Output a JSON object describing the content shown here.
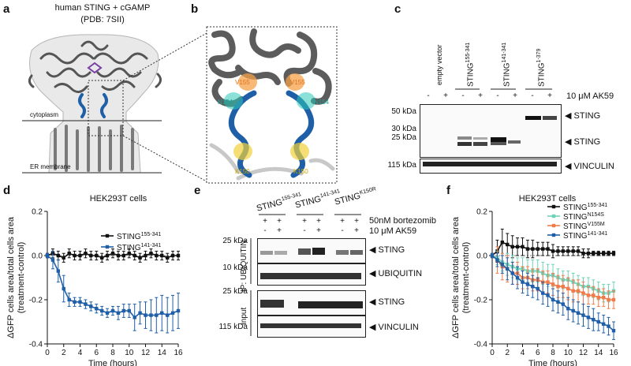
{
  "panels": {
    "a": "a",
    "b": "b",
    "c": "c",
    "d": "d",
    "e": "e",
    "f": "f"
  },
  "panel_a": {
    "title": "human STING + cGAMP",
    "subtitle": "(PDB: 7SII)",
    "cytoplasm": "cytoplasm",
    "er_membrane": "ER membrane"
  },
  "panel_b": {
    "labels": [
      "V155",
      "V155",
      "N154",
      "N154",
      "K150",
      "K150"
    ]
  },
  "panel_c": {
    "col_groups": [
      "empty vector",
      "STING",
      "STING",
      "STING"
    ],
    "col_group_sups": [
      "",
      "155-341",
      "141-341",
      "1-379"
    ],
    "treatment_signs": [
      "-",
      "+",
      "-",
      "+",
      "-",
      "+",
      "-",
      "+"
    ],
    "treatment_label": "10 μM AK59",
    "mw": [
      "50 kDa",
      "30 kDa",
      "25 kDa",
      "115 kDa"
    ],
    "bands": [
      "◀ STING",
      "◀ STING",
      "◀ VINCULIN"
    ]
  },
  "panel_d": {
    "title": "HEK293T cells"
  },
  "panel_e": {
    "groups": [
      "STING",
      "STING",
      "STING"
    ],
    "group_sups": [
      "155-341",
      "141-341",
      "K150R"
    ],
    "row1_signs": [
      "+",
      "+",
      "+",
      "+",
      "+",
      "+"
    ],
    "row2_signs": [
      "-",
      "+",
      "-",
      "+",
      "-",
      "+"
    ],
    "row1_label": "50nM bortezomib",
    "row2_label": "10 μM AK59",
    "ip_label": "IP: UBIQUITIN",
    "input_label": "Input",
    "mw": [
      "25 kDa",
      "10 kDa",
      "25 kDa",
      "115 kDa"
    ],
    "bands": [
      "◀ STING",
      "◀ UBIQUITIN",
      "◀ STING",
      "◀ VINCULIN"
    ]
  },
  "panel_f": {
    "title": "HEK293T cells"
  },
  "chart_data": [
    {
      "type": "line",
      "panel": "d",
      "title": "HEK293T cells",
      "xlabel": "Time (hours)",
      "ylabel": "ΔGFP cells area/total cells area (treatment-control)",
      "ylabel_lines": [
        "ΔGFP cells area/total cells area",
        "(treatment-control)"
      ],
      "xlim": [
        0,
        16
      ],
      "ylim": [
        -0.4,
        0.2
      ],
      "xticks": [
        0,
        2,
        4,
        6,
        8,
        10,
        12,
        14,
        16
      ],
      "yticks": [
        0.2,
        0.0,
        -0.2,
        -0.4
      ],
      "ytick_labels": [
        "0.2",
        "0.0",
        "-0.2",
        "-0.4"
      ],
      "series": [
        {
          "name": "STING155-341",
          "base": "STING",
          "sup": "155-341",
          "color": "#111111",
          "x": [
            0,
            0.67,
            1.33,
            2,
            2.67,
            3.33,
            4,
            4.67,
            5.33,
            6,
            6.67,
            7.33,
            8,
            8.67,
            9.33,
            10,
            10.67,
            11.33,
            12,
            12.67,
            13.33,
            14,
            14.67,
            15.33,
            16
          ],
          "y": [
            0,
            0.01,
            0,
            -0.01,
            0.01,
            0,
            0,
            0.01,
            0,
            0,
            -0.01,
            0,
            0.01,
            0,
            0,
            0.01,
            0,
            -0.01,
            0,
            0.01,
            0,
            0,
            -0.01,
            0,
            0
          ],
          "err": [
            0.01,
            0.02,
            0.02,
            0.02,
            0.02,
            0.02,
            0.02,
            0.02,
            0.02,
            0.02,
            0.02,
            0.02,
            0.02,
            0.02,
            0.02,
            0.02,
            0.02,
            0.02,
            0.02,
            0.02,
            0.02,
            0.02,
            0.02,
            0.02,
            0.02
          ]
        },
        {
          "name": "STING141-341",
          "base": "STING",
          "sup": "141-341",
          "color": "#1f5fa8",
          "x": [
            0,
            0.67,
            1.33,
            2,
            2.67,
            3.33,
            4,
            4.67,
            5.33,
            6,
            6.67,
            7.33,
            8,
            8.67,
            9.33,
            10,
            10.67,
            11.33,
            12,
            12.67,
            13.33,
            14,
            14.67,
            15.33,
            16
          ],
          "y": [
            0,
            -0.02,
            -0.07,
            -0.15,
            -0.2,
            -0.21,
            -0.21,
            -0.22,
            -0.23,
            -0.24,
            -0.25,
            -0.26,
            -0.25,
            -0.26,
            -0.25,
            -0.25,
            -0.28,
            -0.26,
            -0.27,
            -0.27,
            -0.27,
            -0.26,
            -0.27,
            -0.26,
            -0.25
          ],
          "err": [
            0.01,
            0.04,
            0.05,
            0.06,
            0.03,
            0.02,
            0.02,
            0.02,
            0.02,
            0.02,
            0.02,
            0.02,
            0.02,
            0.03,
            0.03,
            0.03,
            0.06,
            0.05,
            0.06,
            0.07,
            0.08,
            0.08,
            0.08,
            0.08,
            0.08
          ]
        }
      ]
    },
    {
      "type": "line",
      "panel": "f",
      "title": "HEK293T cells",
      "xlabel": "Time (hours)",
      "ylabel": "ΔGFP cells area/total cells area (treatment-control)",
      "ylabel_lines": [
        "ΔGFP cells area/total cells area",
        "(treatment-control)"
      ],
      "xlim": [
        0,
        16
      ],
      "ylim": [
        -0.4,
        0.2
      ],
      "xticks": [
        0,
        2,
        4,
        6,
        8,
        10,
        12,
        14,
        16
      ],
      "yticks": [
        0.2,
        0.0,
        -0.2,
        -0.4
      ],
      "ytick_labels": [
        "0.2",
        "0.0",
        "-0.2",
        "-0.4"
      ],
      "series": [
        {
          "name": "STING155-341",
          "base": "STING",
          "sup": "155-341",
          "color": "#111111",
          "x": [
            0,
            0.67,
            1.33,
            2,
            2.67,
            3.33,
            4,
            4.67,
            5.33,
            6,
            6.67,
            7.33,
            8,
            8.67,
            9.33,
            10,
            10.67,
            11.33,
            12,
            12.67,
            13.33,
            14,
            14.67,
            15.33,
            16
          ],
          "y": [
            0,
            0.02,
            0.06,
            0.05,
            0.04,
            0.04,
            0.04,
            0.03,
            0.03,
            0.03,
            0.03,
            0.03,
            0.02,
            0.02,
            0.02,
            0.02,
            0.02,
            0.02,
            0.01,
            0.01,
            0.01,
            0.01,
            0.01,
            0.01,
            0.01
          ],
          "err": [
            0.01,
            0.05,
            0.06,
            0.05,
            0.05,
            0.04,
            0.04,
            0.04,
            0.04,
            0.03,
            0.03,
            0.03,
            0.03,
            0.02,
            0.02,
            0.02,
            0.02,
            0.02,
            0.02,
            0.02,
            0.01,
            0.01,
            0.01,
            0.01,
            0.01
          ]
        },
        {
          "name": "STINGN154S",
          "base": "STING",
          "sup": "N154S",
          "color": "#6fd3b8",
          "x": [
            0,
            0.67,
            1.33,
            2,
            2.67,
            3.33,
            4,
            4.67,
            5.33,
            6,
            6.67,
            7.33,
            8,
            8.67,
            9.33,
            10,
            10.67,
            11.33,
            12,
            12.67,
            13.33,
            14,
            14.67,
            15.33,
            16
          ],
          "y": [
            0,
            -0.01,
            -0.03,
            -0.04,
            -0.05,
            -0.06,
            -0.06,
            -0.07,
            -0.07,
            -0.07,
            -0.08,
            -0.09,
            -0.09,
            -0.1,
            -0.11,
            -0.11,
            -0.12,
            -0.13,
            -0.14,
            -0.14,
            -0.15,
            -0.16,
            -0.17,
            -0.17,
            -0.16
          ],
          "err": [
            0.01,
            0.03,
            0.04,
            0.05,
            0.05,
            0.05,
            0.05,
            0.05,
            0.05,
            0.05,
            0.05,
            0.05,
            0.05,
            0.04,
            0.04,
            0.04,
            0.04,
            0.04,
            0.04,
            0.04,
            0.04,
            0.04,
            0.04,
            0.04,
            0.04
          ]
        },
        {
          "name": "STINGV155M",
          "base": "STING",
          "sup": "V155M",
          "color": "#f07b4a",
          "x": [
            0,
            0.67,
            1.33,
            2,
            2.67,
            3.33,
            4,
            4.67,
            5.33,
            6,
            6.67,
            7.33,
            8,
            8.67,
            9.33,
            10,
            10.67,
            11.33,
            12,
            12.67,
            13.33,
            14,
            14.67,
            15.33,
            16
          ],
          "y": [
            0,
            -0.02,
            -0.05,
            -0.06,
            -0.08,
            -0.08,
            -0.1,
            -0.1,
            -0.11,
            -0.11,
            -0.12,
            -0.12,
            -0.13,
            -0.14,
            -0.14,
            -0.15,
            -0.16,
            -0.16,
            -0.17,
            -0.18,
            -0.18,
            -0.19,
            -0.19,
            -0.2,
            -0.2
          ],
          "err": [
            0.01,
            0.06,
            0.06,
            0.06,
            0.05,
            0.05,
            0.05,
            0.05,
            0.05,
            0.05,
            0.05,
            0.05,
            0.05,
            0.05,
            0.05,
            0.05,
            0.05,
            0.05,
            0.05,
            0.04,
            0.04,
            0.04,
            0.04,
            0.04,
            0.04
          ]
        },
        {
          "name": "STING141-341",
          "base": "STING",
          "sup": "141-341",
          "color": "#1f5fa8",
          "x": [
            0,
            0.67,
            1.33,
            2,
            2.67,
            3.33,
            4,
            4.67,
            5.33,
            6,
            6.67,
            7.33,
            8,
            8.67,
            9.33,
            10,
            10.67,
            11.33,
            12,
            12.67,
            13.33,
            14,
            14.67,
            15.33,
            16
          ],
          "y": [
            0,
            -0.02,
            -0.04,
            -0.06,
            -0.08,
            -0.1,
            -0.12,
            -0.13,
            -0.14,
            -0.15,
            -0.17,
            -0.18,
            -0.2,
            -0.21,
            -0.22,
            -0.24,
            -0.25,
            -0.26,
            -0.27,
            -0.28,
            -0.29,
            -0.3,
            -0.31,
            -0.32,
            -0.34
          ],
          "err": [
            0.01,
            0.03,
            0.04,
            0.05,
            0.05,
            0.05,
            0.05,
            0.05,
            0.05,
            0.05,
            0.05,
            0.05,
            0.05,
            0.05,
            0.05,
            0.05,
            0.05,
            0.05,
            0.05,
            0.05,
            0.05,
            0.04,
            0.04,
            0.04,
            0.04
          ]
        }
      ]
    }
  ]
}
